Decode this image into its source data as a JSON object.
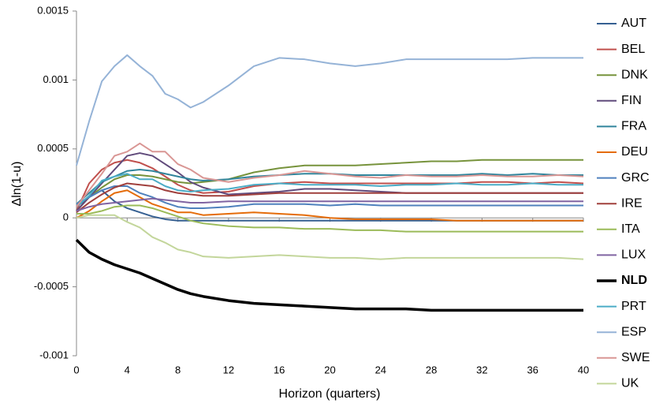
{
  "chart_data": {
    "type": "line",
    "y_label": "Δln(1-u)",
    "x_label": "Horizon (quarters)",
    "xlim": [
      0,
      40
    ],
    "xticks": [
      0,
      4,
      8,
      12,
      16,
      20,
      24,
      28,
      32,
      36,
      40
    ],
    "ylim": [
      -0.001,
      0.0015
    ],
    "yticks": [
      -0.001,
      -0.0005,
      0,
      0.0005,
      0.001,
      0.0015
    ],
    "x": [
      0,
      1,
      2,
      3,
      4,
      5,
      6,
      7,
      8,
      9,
      10,
      12,
      14,
      16,
      18,
      20,
      22,
      24,
      26,
      28,
      30,
      32,
      34,
      36,
      38,
      40
    ],
    "series": [
      {
        "name": "AUT",
        "color": "#366092",
        "width": 2,
        "values": [
          8e-05,
          0.00015,
          0.0002,
          0.00012,
          7e-05,
          4e-05,
          1e-05,
          -1e-05,
          -2e-05,
          -2e-05,
          -2e-05,
          -2e-05,
          -2e-05,
          -2e-05,
          -2e-05,
          -2e-05,
          -2e-05,
          -2e-05,
          -2e-05,
          -2e-05,
          -2e-05,
          -2e-05,
          -2e-05,
          -2e-05,
          -2e-05,
          -2e-05
        ]
      },
      {
        "name": "BEL",
        "color": "#c0504d",
        "width": 2,
        "values": [
          5e-05,
          0.00025,
          0.00035,
          0.0004,
          0.00042,
          0.0004,
          0.00036,
          0.0003,
          0.00024,
          0.0002,
          0.00018,
          0.00019,
          0.00023,
          0.00025,
          0.00026,
          0.00025,
          0.00025,
          0.00025,
          0.00025,
          0.00025,
          0.00025,
          0.00026,
          0.00026,
          0.00025,
          0.00026,
          0.00025
        ]
      },
      {
        "name": "DNK",
        "color": "#77933c",
        "width": 2,
        "values": [
          5e-05,
          0.00015,
          0.00022,
          0.00028,
          0.00031,
          0.00031,
          0.0003,
          0.00028,
          0.00026,
          0.00025,
          0.00026,
          0.00028,
          0.00033,
          0.00036,
          0.00038,
          0.00038,
          0.00038,
          0.00039,
          0.0004,
          0.00041,
          0.00041,
          0.00042,
          0.00042,
          0.00042,
          0.00042,
          0.00042
        ]
      },
      {
        "name": "FIN",
        "color": "#604a7b",
        "width": 2,
        "values": [
          5e-05,
          0.00015,
          0.00025,
          0.00035,
          0.00045,
          0.00047,
          0.00045,
          0.00039,
          0.00033,
          0.00026,
          0.00022,
          0.00017,
          0.00018,
          0.00019,
          0.00021,
          0.00021,
          0.0002,
          0.00019,
          0.00018,
          0.00018,
          0.00018,
          0.00018,
          0.00018,
          0.00018,
          0.00018,
          0.00018
        ]
      },
      {
        "name": "FRA",
        "color": "#31859c",
        "width": 2,
        "values": [
          0.0001,
          0.00018,
          0.00026,
          0.0003,
          0.00034,
          0.00035,
          0.00034,
          0.00032,
          0.0003,
          0.00028,
          0.00027,
          0.00028,
          0.0003,
          0.00031,
          0.00032,
          0.00032,
          0.00031,
          0.00031,
          0.00031,
          0.00031,
          0.00031,
          0.00032,
          0.00031,
          0.00032,
          0.00031,
          0.00031
        ]
      },
      {
        "name": "DEU",
        "color": "#e46c0a",
        "width": 2,
        "values": [
          0,
          5e-05,
          0.00012,
          0.00018,
          0.0002,
          0.00015,
          0.0001,
          7e-05,
          4e-05,
          4e-05,
          2e-05,
          3e-05,
          4e-05,
          3e-05,
          2e-05,
          0,
          -1e-05,
          -1e-05,
          -1e-05,
          -1e-05,
          -2e-05,
          -2e-05,
          -2e-05,
          -2e-05,
          -2e-05,
          -2e-05
        ]
      },
      {
        "name": "GRC",
        "color": "#4f81bd",
        "width": 2,
        "values": [
          0.0001,
          0.00015,
          0.0002,
          0.00023,
          0.00023,
          0.00018,
          0.00015,
          0.00011,
          8e-05,
          7e-05,
          7e-05,
          8e-05,
          0.0001,
          0.0001,
          0.0001,
          9e-05,
          0.0001,
          9e-05,
          9e-05,
          9e-05,
          9e-05,
          9e-05,
          9e-05,
          9e-05,
          9e-05,
          9e-05
        ]
      },
      {
        "name": "IRE",
        "color": "#a0403d",
        "width": 2,
        "values": [
          4e-05,
          0.00011,
          0.00017,
          0.00022,
          0.00025,
          0.00024,
          0.00023,
          0.0002,
          0.00018,
          0.00017,
          0.00016,
          0.00016,
          0.00017,
          0.00018,
          0.00018,
          0.00018,
          0.00018,
          0.00018,
          0.00018,
          0.00018,
          0.00018,
          0.00018,
          0.00018,
          0.00018,
          0.00018,
          0.00018
        ]
      },
      {
        "name": "ITA",
        "color": "#9bbb59",
        "width": 2,
        "values": [
          3e-05,
          3e-05,
          5e-05,
          8e-05,
          9e-05,
          9e-05,
          7e-05,
          4e-05,
          1e-05,
          -2e-05,
          -4e-05,
          -6e-05,
          -7e-05,
          -7e-05,
          -8e-05,
          -8e-05,
          -9e-05,
          -9e-05,
          -0.0001,
          -0.0001,
          -0.0001,
          -0.0001,
          -0.0001,
          -0.0001,
          -0.0001,
          -0.0001
        ]
      },
      {
        "name": "LUX",
        "color": "#8064a2",
        "width": 2,
        "values": [
          5e-05,
          8e-05,
          0.0001,
          0.00011,
          0.00012,
          0.00013,
          0.00014,
          0.00013,
          0.00012,
          0.00011,
          0.00011,
          0.00012,
          0.00012,
          0.00012,
          0.00012,
          0.00012,
          0.00012,
          0.00012,
          0.00012,
          0.00012,
          0.00012,
          0.00012,
          0.00012,
          0.00012,
          0.00012,
          0.00012
        ]
      },
      {
        "name": "NLD",
        "color": "#000000",
        "width": 3.5,
        "values": [
          -0.00016,
          -0.00025,
          -0.0003,
          -0.00034,
          -0.00037,
          -0.0004,
          -0.00044,
          -0.00048,
          -0.00052,
          -0.00055,
          -0.00057,
          -0.0006,
          -0.00062,
          -0.00063,
          -0.00064,
          -0.00065,
          -0.00066,
          -0.00066,
          -0.00066,
          -0.00067,
          -0.00067,
          -0.00067,
          -0.00067,
          -0.00067,
          -0.00067,
          -0.00067
        ]
      },
      {
        "name": "PRT",
        "color": "#4bacc6",
        "width": 2,
        "values": [
          8e-05,
          0.00016,
          0.00027,
          0.0003,
          0.00032,
          0.00028,
          0.00028,
          0.00023,
          0.0002,
          0.00019,
          0.0002,
          0.00021,
          0.00024,
          0.00025,
          0.00024,
          0.00024,
          0.00024,
          0.00023,
          0.00024,
          0.00024,
          0.00025,
          0.00024,
          0.00024,
          0.00025,
          0.00024,
          0.00024
        ]
      },
      {
        "name": "ESP",
        "color": "#95b3d7",
        "width": 2,
        "values": [
          0.00038,
          0.0007,
          0.00099,
          0.0011,
          0.00118,
          0.0011,
          0.00103,
          0.0009,
          0.00086,
          0.0008,
          0.00084,
          0.00096,
          0.0011,
          0.00116,
          0.00115,
          0.00112,
          0.0011,
          0.00112,
          0.00115,
          0.00115,
          0.00115,
          0.00115,
          0.00115,
          0.00116,
          0.00116,
          0.00116
        ]
      },
      {
        "name": "SWE",
        "color": "#d99694",
        "width": 2,
        "values": [
          8e-05,
          0.0002,
          0.00032,
          0.00045,
          0.00048,
          0.00054,
          0.00048,
          0.00048,
          0.00039,
          0.00035,
          0.00029,
          0.00026,
          0.00029,
          0.00031,
          0.00034,
          0.00032,
          0.0003,
          0.00029,
          0.00031,
          0.0003,
          0.0003,
          0.00031,
          0.0003,
          0.0003,
          0.00031,
          0.0003
        ]
      },
      {
        "name": "UK",
        "color": "#c3d69b",
        "width": 2,
        "values": [
          0,
          2e-05,
          2e-05,
          2e-05,
          -3e-05,
          -7e-05,
          -0.00014,
          -0.00018,
          -0.00023,
          -0.00025,
          -0.00028,
          -0.00029,
          -0.00028,
          -0.00027,
          -0.00028,
          -0.00029,
          -0.00029,
          -0.0003,
          -0.00029,
          -0.00029,
          -0.00029,
          -0.00029,
          -0.00029,
          -0.00029,
          -0.00029,
          -0.0003
        ]
      }
    ]
  }
}
